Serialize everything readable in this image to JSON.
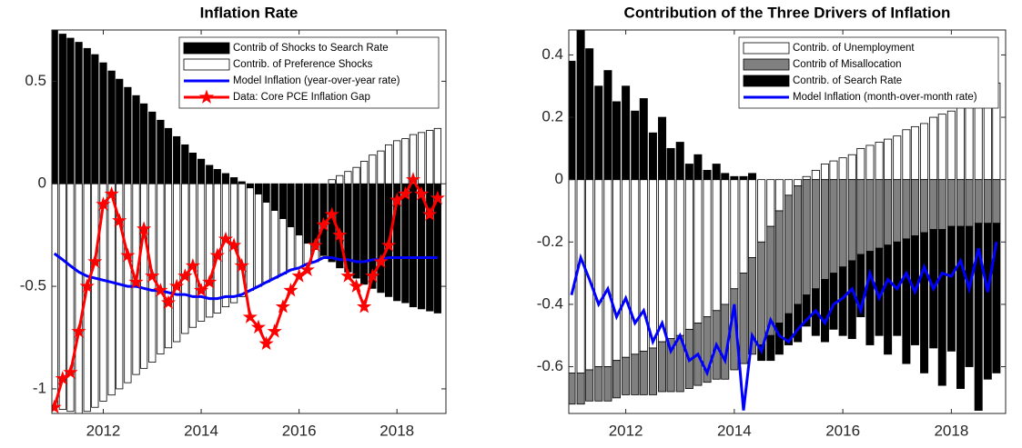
{
  "chart_data": [
    {
      "type": "bar-line",
      "title": "Inflation Rate",
      "x": [
        2011.0,
        2011.17,
        2011.33,
        2011.5,
        2011.67,
        2011.83,
        2012.0,
        2012.17,
        2012.33,
        2012.5,
        2012.67,
        2012.83,
        2013.0,
        2013.17,
        2013.33,
        2013.5,
        2013.67,
        2013.83,
        2014.0,
        2014.17,
        2014.33,
        2014.5,
        2014.67,
        2014.83,
        2015.0,
        2015.17,
        2015.33,
        2015.5,
        2015.67,
        2015.83,
        2016.0,
        2016.17,
        2016.33,
        2016.5,
        2016.67,
        2016.83,
        2017.0,
        2017.17,
        2017.33,
        2017.5,
        2017.67,
        2017.83,
        2018.0,
        2018.17,
        2018.33,
        2018.5,
        2018.67,
        2018.83
      ],
      "xlim": [
        2010.95,
        2019.0
      ],
      "xticks": [
        2012,
        2014,
        2016,
        2018
      ],
      "ylim": [
        -1.12,
        0.75
      ],
      "yticks": [
        -1,
        -0.5,
        0,
        0.5
      ],
      "legend": "northeast",
      "series": [
        {
          "name": "Contrib of Shocks to Search Rate",
          "kind": "bar",
          "color": "#000000",
          "values": [
            0.75,
            0.73,
            0.71,
            0.69,
            0.66,
            0.63,
            0.59,
            0.55,
            0.51,
            0.47,
            0.43,
            0.39,
            0.35,
            0.31,
            0.27,
            0.23,
            0.19,
            0.15,
            0.12,
            0.09,
            0.07,
            0.05,
            0.03,
            0.01,
            -0.02,
            -0.05,
            -0.09,
            -0.13,
            -0.17,
            -0.21,
            -0.25,
            -0.29,
            -0.32,
            -0.35,
            -0.38,
            -0.41,
            -0.43,
            -0.46,
            -0.49,
            -0.51,
            -0.53,
            -0.55,
            -0.57,
            -0.58,
            -0.6,
            -0.61,
            -0.62,
            -0.63
          ]
        },
        {
          "name": "Contrib. of Preference Shocks",
          "kind": "bar",
          "color": "#ffffff",
          "values": [
            -1.09,
            -1.1,
            -1.11,
            -1.12,
            -1.11,
            -1.09,
            -1.06,
            -1.03,
            -1.0,
            -0.97,
            -0.93,
            -0.9,
            -0.87,
            -0.83,
            -0.8,
            -0.77,
            -0.73,
            -0.7,
            -0.67,
            -0.65,
            -0.63,
            -0.6,
            -0.58,
            -0.55,
            -0.5,
            -0.45,
            -0.39,
            -0.33,
            -0.27,
            -0.21,
            -0.16,
            -0.1,
            -0.06,
            -0.01,
            0.02,
            0.04,
            0.06,
            0.08,
            0.11,
            0.14,
            0.16,
            0.19,
            0.21,
            0.22,
            0.24,
            0.25,
            0.26,
            0.27
          ]
        },
        {
          "name": "Model Inflation (year-over-year rate)",
          "kind": "line",
          "color": "#0000ff",
          "values": [
            -0.34,
            -0.37,
            -0.4,
            -0.43,
            -0.45,
            -0.46,
            -0.47,
            -0.48,
            -0.49,
            -0.5,
            -0.5,
            -0.51,
            -0.52,
            -0.52,
            -0.53,
            -0.54,
            -0.54,
            -0.55,
            -0.55,
            -0.56,
            -0.56,
            -0.55,
            -0.55,
            -0.54,
            -0.52,
            -0.5,
            -0.48,
            -0.46,
            -0.44,
            -0.42,
            -0.41,
            -0.39,
            -0.38,
            -0.36,
            -0.36,
            -0.37,
            -0.37,
            -0.38,
            -0.38,
            -0.37,
            -0.37,
            -0.36,
            -0.36,
            -0.36,
            -0.36,
            -0.36,
            -0.36,
            -0.36
          ]
        },
        {
          "name": "Data: Core PCE Inflation Gap",
          "kind": "line-star",
          "color": "#ff0000",
          "values": [
            -1.09,
            -0.95,
            -0.92,
            -0.72,
            -0.5,
            -0.38,
            -0.1,
            -0.05,
            -0.18,
            -0.35,
            -0.48,
            -0.22,
            -0.45,
            -0.52,
            -0.58,
            -0.5,
            -0.45,
            -0.4,
            -0.52,
            -0.48,
            -0.35,
            -0.27,
            -0.3,
            -0.4,
            -0.65,
            -0.7,
            -0.78,
            -0.72,
            -0.6,
            -0.52,
            -0.45,
            -0.42,
            -0.3,
            -0.2,
            -0.15,
            -0.25,
            -0.45,
            -0.5,
            -0.6,
            -0.45,
            -0.38,
            -0.3,
            -0.08,
            -0.05,
            0.02,
            -0.05,
            -0.15,
            -0.07
          ]
        }
      ]
    },
    {
      "type": "bar-line",
      "title": "Contribution of the Three Drivers of Inflation",
      "x": [
        2011.0,
        2011.17,
        2011.33,
        2011.5,
        2011.67,
        2011.83,
        2012.0,
        2012.17,
        2012.33,
        2012.5,
        2012.67,
        2012.83,
        2013.0,
        2013.17,
        2013.33,
        2013.5,
        2013.67,
        2013.83,
        2014.0,
        2014.17,
        2014.33,
        2014.5,
        2014.67,
        2014.83,
        2015.0,
        2015.17,
        2015.33,
        2015.5,
        2015.67,
        2015.83,
        2016.0,
        2016.17,
        2016.33,
        2016.5,
        2016.67,
        2016.83,
        2017.0,
        2017.17,
        2017.33,
        2017.5,
        2017.67,
        2017.83,
        2018.0,
        2018.17,
        2018.33,
        2018.5,
        2018.67,
        2018.83
      ],
      "xlim": [
        2010.95,
        2019.0
      ],
      "xticks": [
        2012,
        2014,
        2016,
        2018
      ],
      "ylim": [
        -0.75,
        0.48
      ],
      "yticks": [
        -0.6,
        -0.4,
        -0.2,
        0,
        0.2,
        0.4
      ],
      "legend": "northeast",
      "series": [
        {
          "name": "Contrib. of Unemployment",
          "kind": "bar",
          "color": "#ffffff",
          "values": [
            -0.62,
            -0.62,
            -0.61,
            -0.6,
            -0.6,
            -0.58,
            -0.57,
            -0.56,
            -0.55,
            -0.54,
            -0.52,
            -0.51,
            -0.5,
            -0.48,
            -0.46,
            -0.44,
            -0.42,
            -0.4,
            -0.35,
            -0.3,
            -0.25,
            -0.2,
            -0.15,
            -0.1,
            -0.05,
            -0.02,
            0.01,
            0.03,
            0.05,
            0.06,
            0.07,
            0.08,
            0.1,
            0.11,
            0.12,
            0.13,
            0.14,
            0.16,
            0.17,
            0.18,
            0.2,
            0.21,
            0.22,
            0.24,
            0.26,
            0.28,
            0.3,
            0.31
          ]
        },
        {
          "name": "Contrib of Misallocation",
          "kind": "bar",
          "color": "#808080",
          "values": [
            -0.1,
            -0.1,
            -0.1,
            -0.11,
            -0.11,
            -0.12,
            -0.12,
            -0.13,
            -0.14,
            -0.15,
            -0.16,
            -0.17,
            -0.18,
            -0.19,
            -0.2,
            -0.21,
            -0.22,
            -0.24,
            -0.26,
            -0.29,
            -0.31,
            -0.33,
            -0.35,
            -0.36,
            -0.38,
            -0.38,
            -0.37,
            -0.35,
            -0.32,
            -0.3,
            -0.28,
            -0.26,
            -0.24,
            -0.23,
            -0.22,
            -0.21,
            -0.2,
            -0.19,
            -0.18,
            -0.17,
            -0.16,
            -0.16,
            -0.15,
            -0.15,
            -0.15,
            -0.14,
            -0.14,
            -0.14
          ]
        },
        {
          "name": "Contrib. of Search Rate",
          "kind": "bar",
          "color": "#000000",
          "values": [
            0.38,
            0.48,
            0.42,
            0.3,
            0.35,
            0.25,
            0.3,
            0.22,
            0.26,
            0.15,
            0.2,
            0.1,
            0.12,
            0.05,
            0.08,
            0.03,
            0.05,
            0.02,
            0.01,
            0.01,
            0.02,
            -0.05,
            -0.08,
            -0.1,
            -0.1,
            -0.12,
            -0.1,
            -0.15,
            -0.2,
            -0.18,
            -0.22,
            -0.25,
            -0.2,
            -0.3,
            -0.28,
            -0.35,
            -0.3,
            -0.4,
            -0.35,
            -0.45,
            -0.38,
            -0.5,
            -0.4,
            -0.52,
            -0.45,
            -0.6,
            -0.5,
            -0.48
          ]
        },
        {
          "name": "Model Inflation (month-over-month rate)",
          "kind": "line",
          "color": "#0000ff",
          "values": [
            -0.37,
            -0.25,
            -0.32,
            -0.4,
            -0.35,
            -0.44,
            -0.38,
            -0.46,
            -0.42,
            -0.52,
            -0.46,
            -0.55,
            -0.5,
            -0.58,
            -0.56,
            -0.62,
            -0.53,
            -0.58,
            -0.4,
            -0.74,
            -0.5,
            -0.55,
            -0.45,
            -0.5,
            -0.52,
            -0.48,
            -0.45,
            -0.42,
            -0.46,
            -0.4,
            -0.38,
            -0.35,
            -0.42,
            -0.3,
            -0.38,
            -0.32,
            -0.35,
            -0.3,
            -0.36,
            -0.28,
            -0.35,
            -0.3,
            -0.31,
            -0.26,
            -0.35,
            -0.22,
            -0.36,
            -0.2
          ]
        }
      ]
    }
  ]
}
